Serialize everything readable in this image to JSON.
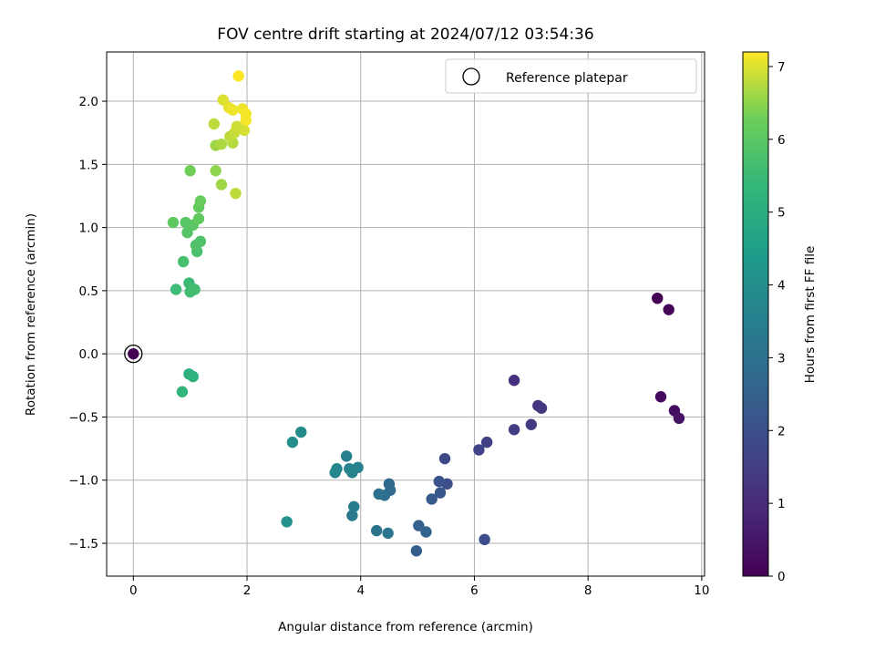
{
  "chart_data": {
    "type": "scatter",
    "title": "FOV centre drift starting at 2024/07/12 03:54:36",
    "xlabel": "Angular distance from reference (arcmin)",
    "ylabel": "Rotation from reference (arcmin)",
    "xlim": [
      -0.47,
      10.05
    ],
    "ylim": [
      -1.76,
      2.39
    ],
    "x_ticks": [
      0,
      2,
      4,
      6,
      8,
      10
    ],
    "y_ticks": [
      -1.5,
      -1.0,
      -0.5,
      0.0,
      0.5,
      1.0,
      1.5,
      2.0
    ],
    "x_tick_labels": [
      "0",
      "2",
      "4",
      "6",
      "8",
      "10"
    ],
    "y_tick_labels": [
      "−1.5",
      "−1.0",
      "−0.5",
      "0.0",
      "0.5",
      "1.0",
      "1.5",
      "2.0"
    ],
    "grid": true,
    "legend": {
      "position": "top-right",
      "entries": [
        "Reference platepar"
      ]
    },
    "reference_point": {
      "x": 0,
      "y": 0,
      "hours": 0
    },
    "colorbar": {
      "label": "Hours from first FF file",
      "colormap": "viridis",
      "min": 0,
      "max": 7.2,
      "ticks": [
        0,
        1,
        2,
        3,
        4,
        5,
        6,
        7
      ],
      "tick_labels": [
        "0",
        "1",
        "2",
        "3",
        "4",
        "5",
        "6",
        "7"
      ]
    },
    "points": [
      {
        "x": 9.22,
        "y": 0.44,
        "hours": 0.0
      },
      {
        "x": 9.42,
        "y": 0.35,
        "hours": 0.1
      },
      {
        "x": 9.28,
        "y": -0.34,
        "hours": 0.2
      },
      {
        "x": 9.52,
        "y": -0.45,
        "hours": 0.3
      },
      {
        "x": 9.6,
        "y": -0.51,
        "hours": 0.4
      },
      {
        "x": 6.7,
        "y": -0.21,
        "hours": 1.1
      },
      {
        "x": 7.12,
        "y": -0.41,
        "hours": 1.2
      },
      {
        "x": 7.18,
        "y": -0.43,
        "hours": 1.3
      },
      {
        "x": 7.0,
        "y": -0.56,
        "hours": 1.4
      },
      {
        "x": 6.7,
        "y": -0.6,
        "hours": 1.5
      },
      {
        "x": 6.22,
        "y": -0.7,
        "hours": 1.6
      },
      {
        "x": 6.08,
        "y": -0.76,
        "hours": 1.7
      },
      {
        "x": 5.48,
        "y": -0.83,
        "hours": 1.8
      },
      {
        "x": 6.18,
        "y": -1.47,
        "hours": 1.9
      },
      {
        "x": 5.52,
        "y": -1.03,
        "hours": 2.0
      },
      {
        "x": 5.38,
        "y": -1.01,
        "hours": 2.1
      },
      {
        "x": 5.4,
        "y": -1.1,
        "hours": 2.2
      },
      {
        "x": 5.25,
        "y": -1.15,
        "hours": 2.3
      },
      {
        "x": 4.98,
        "y": -1.56,
        "hours": 2.4
      },
      {
        "x": 5.02,
        "y": -1.36,
        "hours": 2.5
      },
      {
        "x": 5.15,
        "y": -1.41,
        "hours": 2.6
      },
      {
        "x": 4.5,
        "y": -1.03,
        "hours": 2.7
      },
      {
        "x": 4.52,
        "y": -1.08,
        "hours": 2.8
      },
      {
        "x": 4.42,
        "y": -1.12,
        "hours": 2.9
      },
      {
        "x": 4.32,
        "y": -1.11,
        "hours": 3.0
      },
      {
        "x": 4.28,
        "y": -1.4,
        "hours": 3.1
      },
      {
        "x": 4.48,
        "y": -1.42,
        "hours": 3.2
      },
      {
        "x": 3.85,
        "y": -1.28,
        "hours": 3.3
      },
      {
        "x": 3.88,
        "y": -1.21,
        "hours": 3.4
      },
      {
        "x": 3.75,
        "y": -0.81,
        "hours": 3.5
      },
      {
        "x": 3.8,
        "y": -0.91,
        "hours": 3.55
      },
      {
        "x": 3.95,
        "y": -0.9,
        "hours": 3.6
      },
      {
        "x": 3.85,
        "y": -0.94,
        "hours": 3.65
      },
      {
        "x": 3.58,
        "y": -0.91,
        "hours": 3.7
      },
      {
        "x": 3.55,
        "y": -0.94,
        "hours": 3.75
      },
      {
        "x": 2.95,
        "y": -0.62,
        "hours": 3.9
      },
      {
        "x": 2.8,
        "y": -0.7,
        "hours": 4.0
      },
      {
        "x": 2.7,
        "y": -1.33,
        "hours": 4.1
      },
      {
        "x": 0.98,
        "y": -0.16,
        "hours": 5.1
      },
      {
        "x": 1.05,
        "y": -0.18,
        "hours": 5.2
      },
      {
        "x": 0.86,
        "y": -0.3,
        "hours": 5.3
      },
      {
        "x": 0.98,
        "y": 0.56,
        "hours": 5.5
      },
      {
        "x": 0.75,
        "y": 0.51,
        "hours": 5.55
      },
      {
        "x": 1.0,
        "y": 0.49,
        "hours": 5.6
      },
      {
        "x": 1.08,
        "y": 0.51,
        "hours": 5.65
      },
      {
        "x": 0.88,
        "y": 0.73,
        "hours": 5.7
      },
      {
        "x": 1.12,
        "y": 0.81,
        "hours": 5.75
      },
      {
        "x": 1.18,
        "y": 0.89,
        "hours": 5.8
      },
      {
        "x": 1.1,
        "y": 0.86,
        "hours": 5.85
      },
      {
        "x": 0.95,
        "y": 0.96,
        "hours": 5.9
      },
      {
        "x": 0.92,
        "y": 1.04,
        "hours": 5.95
      },
      {
        "x": 1.05,
        "y": 1.02,
        "hours": 6.0
      },
      {
        "x": 0.7,
        "y": 1.04,
        "hours": 6.05
      },
      {
        "x": 1.15,
        "y": 1.07,
        "hours": 6.1
      },
      {
        "x": 1.15,
        "y": 1.16,
        "hours": 6.15
      },
      {
        "x": 1.18,
        "y": 1.21,
        "hours": 6.2
      },
      {
        "x": 1.0,
        "y": 1.45,
        "hours": 6.3
      },
      {
        "x": 1.45,
        "y": 1.45,
        "hours": 6.5
      },
      {
        "x": 1.55,
        "y": 1.34,
        "hours": 6.6
      },
      {
        "x": 1.8,
        "y": 1.27,
        "hours": 6.8
      },
      {
        "x": 1.45,
        "y": 1.65,
        "hours": 6.6
      },
      {
        "x": 1.55,
        "y": 1.66,
        "hours": 6.7
      },
      {
        "x": 1.75,
        "y": 1.67,
        "hours": 6.75
      },
      {
        "x": 1.7,
        "y": 1.72,
        "hours": 6.8
      },
      {
        "x": 1.42,
        "y": 1.82,
        "hours": 6.8
      },
      {
        "x": 1.78,
        "y": 1.75,
        "hours": 6.85
      },
      {
        "x": 1.82,
        "y": 1.8,
        "hours": 6.9
      },
      {
        "x": 1.95,
        "y": 1.77,
        "hours": 6.95
      },
      {
        "x": 1.58,
        "y": 2.01,
        "hours": 7.0
      },
      {
        "x": 1.68,
        "y": 1.95,
        "hours": 7.05
      },
      {
        "x": 1.75,
        "y": 1.93,
        "hours": 7.1
      },
      {
        "x": 1.92,
        "y": 1.94,
        "hours": 7.1
      },
      {
        "x": 1.98,
        "y": 1.9,
        "hours": 7.15
      },
      {
        "x": 1.98,
        "y": 1.85,
        "hours": 7.15
      },
      {
        "x": 1.85,
        "y": 2.2,
        "hours": 7.2
      }
    ]
  }
}
